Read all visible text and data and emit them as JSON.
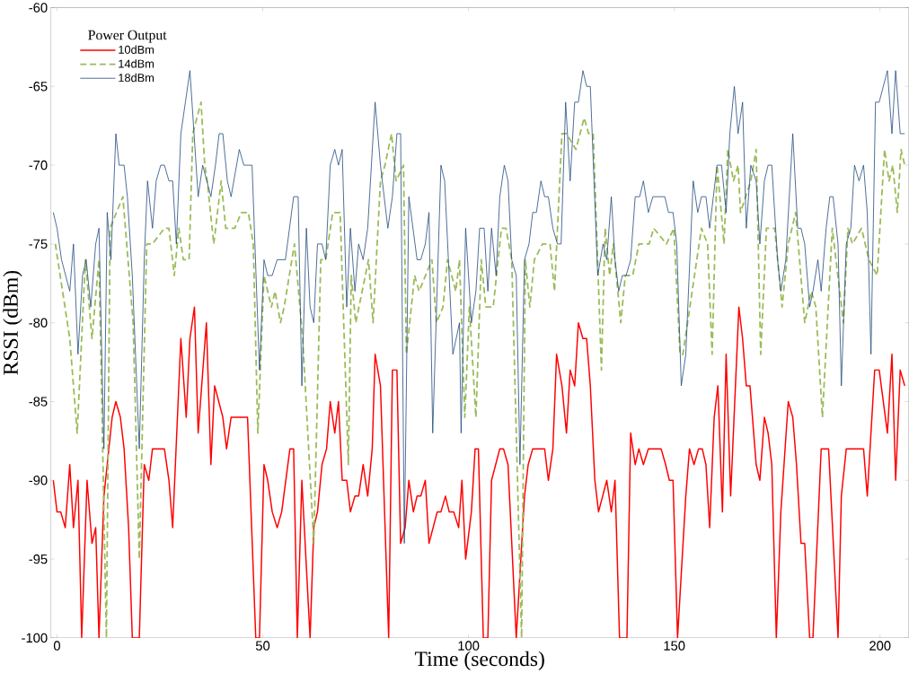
{
  "chart_data": {
    "type": "line",
    "xlabel": "Time (seconds)",
    "ylabel": "RSSI (dBm)",
    "legend_title": "Power Output",
    "legend": "top left",
    "grid": false,
    "marker": "none",
    "xlim": [
      -1.5,
      207
    ],
    "ylim": [
      -100,
      -60
    ],
    "xticks": [
      0,
      50,
      100,
      150,
      200
    ],
    "yticks": [
      -100,
      -95,
      -90,
      -85,
      -80,
      -75,
      -70,
      -65,
      -60
    ],
    "series": [
      {
        "name": "10dBm",
        "color": "#ff0000",
        "line_style": "solid",
        "x": [
          -0.9,
          0,
          0.9,
          2,
          3.1,
          4,
          5.1,
          6,
          7.3,
          8.5,
          9.4,
          10.2,
          11.4,
          12.2,
          13.4,
          14.3,
          15.4,
          16.3,
          17.4,
          18.3,
          20,
          21.2,
          22.3,
          23.2,
          26.1,
          27.2,
          28.1,
          30.1,
          31.4,
          32.3,
          33.4,
          34.3,
          36.3,
          37.4,
          38.3,
          40.3,
          41.2,
          42.3,
          46.3,
          48.3,
          49.2,
          50.3,
          51.2,
          52.3,
          53.5,
          54.6,
          56.6,
          57.5,
          58.4,
          59.5,
          61.5,
          62.4,
          63.3,
          64.4,
          65.5,
          66.4,
          67.5,
          68.4,
          69.3,
          70.4,
          71.3,
          72.4,
          73.3,
          74.4,
          75.5,
          76.6,
          77.3,
          78.6,
          80.6,
          81.5,
          82.6,
          83.5,
          84.6,
          85.5,
          86.6,
          87.5,
          88.4,
          89.5,
          90.4,
          92.4,
          93.3,
          94.4,
          95.3,
          96.4,
          97.6,
          98.4,
          99.3,
          100.7,
          101.6,
          102.4,
          103.6,
          104.7,
          105.6,
          107.6,
          108.5,
          109.6,
          111.6,
          113.6,
          114.5,
          115.6,
          118.5,
          119.4,
          120.5,
          121.4,
          122.7,
          123.8,
          124.7,
          125.8,
          126.7,
          127.8,
          128.7,
          129.6,
          130.7,
          131.6,
          133.6,
          134.7,
          135.6,
          136.7,
          138.5,
          139.4,
          140.5,
          141.4,
          142.5,
          143.7,
          146.8,
          147.9,
          148.8,
          149.7,
          150.8,
          152.8,
          153.7,
          154.8,
          155.9,
          156.8,
          157.7,
          158.6,
          159.7,
          160.6,
          161.7,
          162.6,
          163.7,
          165.7,
          166.6,
          167.5,
          168.4,
          169.9,
          170.8,
          171.9,
          172.8,
          173.7,
          174.8,
          175.9,
          177.7,
          178.8,
          179.7,
          180.8,
          181.7,
          182.9,
          183.7,
          185.7,
          187.5,
          189.8,
          190.6,
          191.8,
          196.0,
          196.9,
          198.7,
          199.8,
          201.8,
          202.9,
          203.8,
          204.9,
          206.0
        ],
        "values": [
          -90,
          -92,
          -92,
          -93,
          -89,
          -93,
          -90,
          -100,
          -90,
          -94,
          -93,
          -100,
          -91,
          -89,
          -86,
          -85,
          -86,
          -88,
          -93,
          -100,
          -100,
          -89,
          -90,
          -88,
          -88,
          -90,
          -93,
          -81,
          -86,
          -81,
          -79,
          -87,
          -80,
          -89,
          -84,
          -86,
          -88,
          -86,
          -86,
          -100,
          -100,
          -89,
          -90,
          -92,
          -93,
          -92,
          -88,
          -88,
          -100,
          -90,
          -100,
          -93,
          -92,
          -89,
          -88,
          -85,
          -87,
          -85,
          -90,
          -90,
          -92,
          -91,
          -91,
          -89,
          -91,
          -88,
          -82,
          -84,
          -100,
          -83,
          -83,
          -94,
          -93,
          -90,
          -92,
          -91,
          -91,
          -90,
          -94,
          -92,
          -92,
          -91,
          -92,
          -92,
          -93,
          -90,
          -95,
          -92,
          -88,
          -88,
          -100,
          -100,
          -90,
          -88,
          -88,
          -89,
          -100,
          -91,
          -89,
          -88,
          -88,
          -90,
          -88,
          -82,
          -84,
          -87,
          -83,
          -84,
          -80,
          -81,
          -81,
          -84,
          -90,
          -92,
          -90,
          -92,
          -90,
          -100,
          -100,
          -87,
          -89,
          -88,
          -89,
          -88,
          -88,
          -89,
          -90,
          -90,
          -100,
          -91,
          -88,
          -89,
          -88,
          -88,
          -89,
          -93,
          -86,
          -84,
          -92,
          -82,
          -91,
          -79,
          -81,
          -84,
          -84,
          -89,
          -90,
          -86,
          -87,
          -89,
          -100,
          -92,
          -85,
          -86,
          -89,
          -94,
          -94,
          -100,
          -100,
          -88,
          -88,
          -100,
          -91,
          -88,
          -88,
          -91,
          -83,
          -83,
          -87,
          -82,
          -90,
          -83,
          -84
        ]
      },
      {
        "name": "14dBm",
        "color": "#9bbb59",
        "line_style": "dashed",
        "x": [
          -0.4,
          3.1,
          4.9,
          6.9,
          8.5,
          10.2,
          12.0,
          12.9,
          16.0,
          18.5,
          20.0,
          21.8,
          23.2,
          26.1,
          27.2,
          28.5,
          29.6,
          30.7,
          32.1,
          33.0,
          35.0,
          35.9,
          36.5,
          38.1,
          39.9,
          41.0,
          43.2,
          44.8,
          46.5,
          47.7,
          48.8,
          50.3,
          52.1,
          53.0,
          54.3,
          55.2,
          57.7,
          59.7,
          62.4,
          64.1,
          65.3,
          67.0,
          68.8,
          70.8,
          71.5,
          72.6,
          75.7,
          76.8,
          78.6,
          79.7,
          81.3,
          82.4,
          84.2,
          84.9,
          86.9,
          88.0,
          91.1,
          92.2,
          93.8,
          94.9,
          96.9,
          97.8,
          99.1,
          100.2,
          101.8,
          103.1,
          104.2,
          106.0,
          108.0,
          109.1,
          110.5,
          112.9,
          113.8,
          114.9,
          116.0,
          118.0,
          119.8,
          120.9,
          122.7,
          123.8,
          126.1,
          128.1,
          129.2,
          130.3,
          132.3,
          133.2,
          134.3,
          135.2,
          137.0,
          138.1,
          139.9,
          141.4,
          143.9,
          145.0,
          148.1,
          149.9,
          151.4,
          152.1,
          156.6,
          158.1,
          159.2,
          160.4,
          162.1,
          163.0,
          164.4,
          165.5,
          166.1,
          168.6,
          169.9,
          171.0,
          172.4,
          174.4,
          176.2,
          177.7,
          179.5,
          181.7,
          183.3,
          184.4,
          186.0,
          188.4,
          191.1,
          192.2,
          193.3,
          195.5,
          197.3,
          199.3,
          201.1,
          202.2,
          203.1,
          204.2,
          205.1,
          206.0
        ],
        "values": [
          -75,
          -81,
          -87,
          -76,
          -81,
          -76,
          -100,
          -74,
          -72,
          -80,
          -95,
          -75,
          -75,
          -74,
          -74,
          -77,
          -74,
          -76,
          -76,
          -68,
          -66,
          -70,
          -71,
          -75,
          -71,
          -74,
          -74,
          -73,
          -73,
          -75,
          -87,
          -77,
          -79,
          -78,
          -80,
          -79,
          -75,
          -81,
          -94,
          -76,
          -76,
          -73,
          -73,
          -89,
          -77,
          -80,
          -76,
          -80,
          -71,
          -70,
          -68,
          -71,
          -70,
          -82,
          -77,
          -78,
          -76,
          -80,
          -79,
          -76,
          -78,
          -76,
          -86,
          -79,
          -86,
          -76,
          -79,
          -79,
          -74,
          -74,
          -76,
          -100,
          -76,
          -79,
          -76,
          -75,
          -75,
          -78,
          -68,
          -68,
          -69,
          -67,
          -68,
          -68,
          -83,
          -74,
          -77,
          -75,
          -80,
          -77,
          -77,
          -75,
          -75,
          -74,
          -75,
          -74,
          -82,
          -82,
          -74,
          -75,
          -82,
          -70,
          -75,
          -69,
          -71,
          -70,
          -73,
          -71,
          -69,
          -82,
          -74,
          -74,
          -79,
          -75,
          -73,
          -80,
          -78,
          -79,
          -86,
          -74,
          -80,
          -74,
          -75,
          -74,
          -76,
          -77,
          -69,
          -71,
          -70,
          -73,
          -69,
          -70
        ]
      },
      {
        "name": "18dBm",
        "color": "#1f497d",
        "line_style": "solid",
        "x": [
          -0.9,
          0,
          1.1,
          3.1,
          4.0,
          5.1,
          6.2,
          7.1,
          8.2,
          9.4,
          10.2,
          11.4,
          12.2,
          13.1,
          14.3,
          15.1,
          16.3,
          17.1,
          18.3,
          20.0,
          21.2,
          22.0,
          23.2,
          24.1,
          25.2,
          26.1,
          27.2,
          28.1,
          29.0,
          30.1,
          31.2,
          32.3,
          34.3,
          35.4,
          37.4,
          38.5,
          39.4,
          40.3,
          41.4,
          42.3,
          44.3,
          45.4,
          47.4,
          49.2,
          50.3,
          51.2,
          52.3,
          53.5,
          55.5,
          57.5,
          58.6,
          59.5,
          60.6,
          61.5,
          62.4,
          63.3,
          64.4,
          65.3,
          66.4,
          67.5,
          68.4,
          69.3,
          70.4,
          71.3,
          72.4,
          73.3,
          74.4,
          75.5,
          77.3,
          78.6,
          80.4,
          81.5,
          82.6,
          83.5,
          84.4,
          85.5,
          87.5,
          88.4,
          89.5,
          90.4,
          91.3,
          93.3,
          94.2,
          96.2,
          97.8,
          98.2,
          99.3,
          100.7,
          101.8,
          102.7,
          103.8,
          104.7,
          105.6,
          106.7,
          107.6,
          108.7,
          109.6,
          110.5,
          111.6,
          112.5,
          113.6,
          114.7,
          115.6,
          116.5,
          117.6,
          118.5,
          119.4,
          120.5,
          121.6,
          122.5,
          123.6,
          124.7,
          125.8,
          126.7,
          127.8,
          128.7,
          129.6,
          131.4,
          132.7,
          133.6,
          134.7,
          135.6,
          136.5,
          137.4,
          138.3,
          139.4,
          140.5,
          141.6,
          142.5,
          143.7,
          144.8,
          147.7,
          148.6,
          149.7,
          150.6,
          151.7,
          152.8,
          154.6,
          155.7,
          156.6,
          157.7,
          158.6,
          160.4,
          161.5,
          162.6,
          163.5,
          164.6,
          165.5,
          166.6,
          167.5,
          168.6,
          169.9,
          170.8,
          171.9,
          172.8,
          173.7,
          175.1,
          175.9,
          177.1,
          178.8,
          180.0,
          180.8,
          181.7,
          182.9,
          183.7,
          184.9,
          185.7,
          186.9,
          187.8,
          188.6,
          189.8,
          190.6,
          191.8,
          192.9,
          193.8,
          194.9,
          196.0,
          196.9,
          197.8,
          198.9,
          199.8,
          201.8,
          202.9,
          203.8,
          204.9,
          206.0
        ],
        "values": [
          -73,
          -74,
          -76,
          -78,
          -75,
          -82,
          -77,
          -76,
          -79,
          -75,
          -74,
          -88,
          -73,
          -76,
          -68,
          -70,
          -70,
          -72,
          -77,
          -88,
          -76,
          -71,
          -74,
          -71,
          -70,
          -70,
          -71,
          -71,
          -75,
          -68,
          -66,
          -64,
          -72,
          -70,
          -72,
          -70,
          -68,
          -68,
          -71,
          -72,
          -69,
          -70,
          -70,
          -83,
          -76,
          -77,
          -77,
          -76,
          -76,
          -72,
          -72,
          -84,
          -74,
          -79,
          -80,
          -75,
          -75,
          -76,
          -70,
          -69,
          -70,
          -69,
          -79,
          -74,
          -78,
          -75,
          -76,
          -74,
          -66,
          -70,
          -74,
          -72,
          -68,
          -68,
          -94,
          -72,
          -76,
          -76,
          -75,
          -73,
          -87,
          -70,
          -71,
          -82,
          -80,
          -87,
          -74,
          -80,
          -78,
          -74,
          -74,
          -78,
          -74,
          -77,
          -72,
          -70,
          -71,
          -76,
          -77,
          -89,
          -76,
          -75,
          -73,
          -73,
          -71,
          -72,
          -72,
          -74,
          -75,
          -75,
          -66,
          -71,
          -66,
          -66,
          -64,
          -65,
          -65,
          -77,
          -75,
          -76,
          -72,
          -76,
          -78,
          -77,
          -77,
          -76,
          -72,
          -72,
          -71,
          -73,
          -72,
          -72,
          -73,
          -73,
          -75,
          -84,
          -82,
          -71,
          -73,
          -72,
          -72,
          -74,
          -70,
          -70,
          -73,
          -68,
          -65,
          -68,
          -66,
          -74,
          -70,
          -71,
          -75,
          -71,
          -70,
          -70,
          -76,
          -78,
          -76,
          -68,
          -74,
          -74,
          -75,
          -79,
          -78,
          -76,
          -78,
          -74,
          -72,
          -72,
          -75,
          -84,
          -75,
          -74,
          -70,
          -71,
          -70,
          -73,
          -82,
          -66,
          -66,
          -64,
          -68,
          -64,
          -68,
          -68
        ]
      }
    ]
  }
}
